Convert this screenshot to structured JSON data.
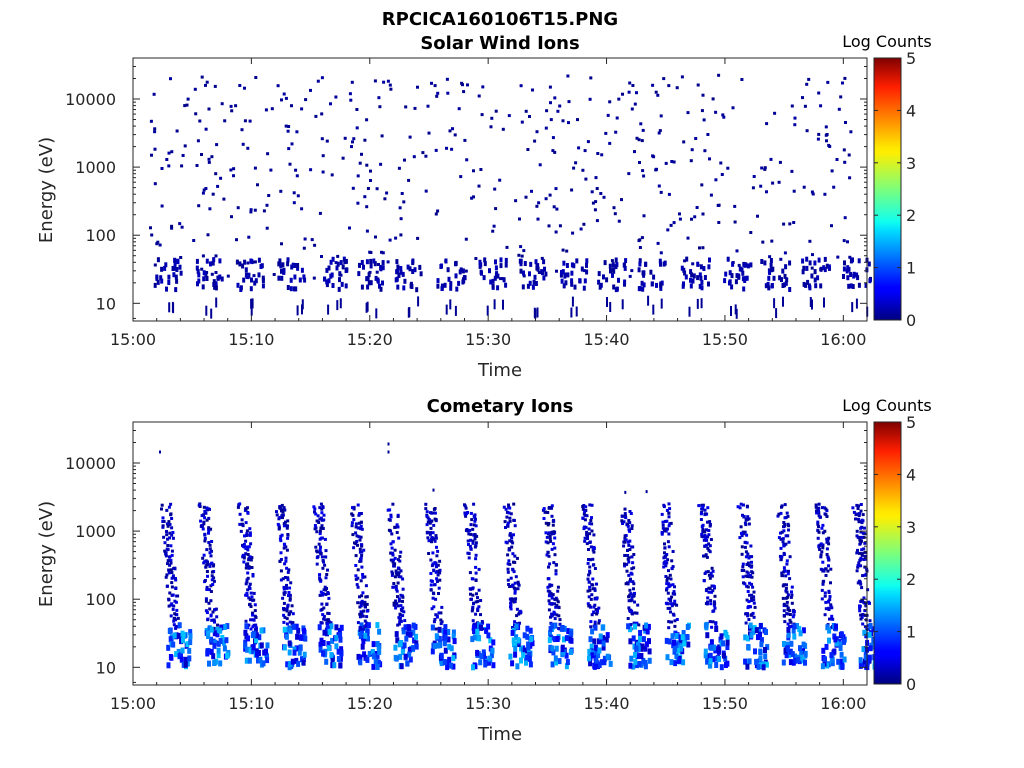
{
  "figure": {
    "title": "RPCICA160106T15.PNG"
  },
  "chart_data": [
    {
      "type": "heatmap",
      "title": "Solar Wind Ions",
      "xlabel": "Time",
      "ylabel": "Energy (eV)",
      "y_scale": "log",
      "x_ticks": [
        "15:00",
        "15:10",
        "15:20",
        "15:30",
        "15:40",
        "15:50",
        "16:00"
      ],
      "y_ticks": [
        "10",
        "100",
        "1000",
        "10000"
      ],
      "xlim": [
        "15:00",
        "16:02"
      ],
      "ylim": [
        5.5,
        40000
      ],
      "colorbar": {
        "label": "Log Counts",
        "ticks": [
          "0",
          "1",
          "2",
          "3",
          "4",
          "5"
        ],
        "range": [
          0,
          5
        ],
        "colormap": "jet"
      },
      "pattern": "sparse isolated counts (log ~0) spread 20 eV - 20 keV; recurring dense patches 15-40 eV",
      "sweep_times_min": [
        2.4,
        5.9,
        9.3,
        12.9,
        16.3,
        19.4,
        22.8,
        26.3,
        29.8,
        33.3,
        36.6,
        39.9,
        43.3,
        46.9,
        50.4,
        53.7,
        57.1,
        60.6
      ],
      "max_log_counts": 0.2
    },
    {
      "type": "heatmap",
      "title": "Cometary Ions",
      "xlabel": "Time",
      "ylabel": "Energy (eV)",
      "y_scale": "log",
      "x_ticks": [
        "15:00",
        "15:10",
        "15:20",
        "15:30",
        "15:40",
        "15:50",
        "16:00"
      ],
      "y_ticks": [
        "10",
        "100",
        "1000",
        "10000"
      ],
      "xlim": [
        "15:00",
        "16:02"
      ],
      "ylim": [
        5.5,
        40000
      ],
      "colorbar": {
        "label": "Log Counts",
        "ticks": [
          "0",
          "1",
          "2",
          "3",
          "4",
          "5"
        ],
        "range": [
          0,
          5
        ],
        "colormap": "jet"
      },
      "pattern": "repeating energy sweeps: dispersed tails from ~2 keV down to ~40 eV, intense core 10-45 eV reaching log counts ~1.6",
      "sweep_times_min": [
        2.4,
        5.6,
        8.9,
        12.1,
        15.2,
        18.4,
        21.5,
        24.7,
        28.0,
        31.3,
        34.6,
        37.9,
        41.2,
        44.5,
        47.8,
        51.1,
        54.4,
        57.7,
        60.8
      ],
      "max_log_counts": 1.6
    }
  ]
}
